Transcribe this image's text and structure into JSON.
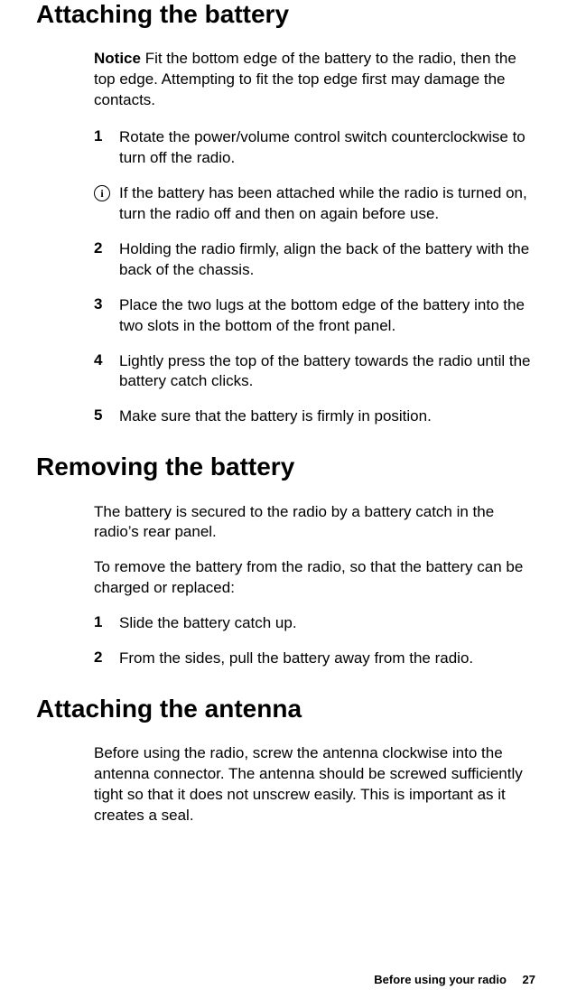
{
  "section1": {
    "heading": "Attaching the battery",
    "notice_label": "Notice",
    "notice_text": "Fit the bottom edge of the battery to the radio, then the top edge. Attempting to fit the top edge first may damage the contacts.",
    "steps": [
      {
        "num": "1",
        "text": "Rotate the power/volume control switch counterclockwise to turn off the radio."
      }
    ],
    "info_text": "If the battery has been attached while the radio is turned on, turn the radio off and then on again before use.",
    "steps_after": [
      {
        "num": "2",
        "text": "Holding the radio firmly, align the back of the battery with the back of the chassis."
      },
      {
        "num": "3",
        "text": "Place the two lugs at the bottom edge of the battery into the two slots in the bottom of the front panel."
      },
      {
        "num": "4",
        "text": "Lightly press the top of the battery towards the radio until the battery catch clicks."
      },
      {
        "num": "5",
        "text": "Make sure that the battery is firmly in position."
      }
    ]
  },
  "section2": {
    "heading": "Removing the battery",
    "para1": "The battery is secured to the radio by a battery catch in the radio’s rear panel.",
    "para2": "To remove the battery from the radio, so that the battery can be charged or replaced:",
    "steps": [
      {
        "num": "1",
        "text": "Slide the battery catch up."
      },
      {
        "num": "2",
        "text": "From the sides, pull the battery away from the radio."
      }
    ]
  },
  "section3": {
    "heading": "Attaching the antenna",
    "para": "Before using the radio, screw the antenna clockwise into the antenna connector. The antenna should be screwed sufficiently tight so that it does not unscrew easily. This is important as it creates a seal."
  },
  "footer": {
    "text": "Before using your radio",
    "page": "27"
  },
  "info_glyph": "i"
}
